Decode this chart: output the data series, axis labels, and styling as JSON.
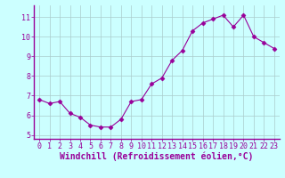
{
  "x": [
    0,
    1,
    2,
    3,
    4,
    5,
    6,
    7,
    8,
    9,
    10,
    11,
    12,
    13,
    14,
    15,
    16,
    17,
    18,
    19,
    20,
    21,
    22,
    23
  ],
  "y": [
    6.8,
    6.6,
    6.7,
    6.1,
    5.9,
    5.5,
    5.4,
    5.4,
    5.8,
    6.7,
    6.8,
    7.6,
    7.9,
    8.8,
    9.3,
    10.3,
    10.7,
    10.9,
    11.1,
    10.5,
    11.1,
    10.0,
    9.7,
    9.4
  ],
  "line_color": "#990099",
  "marker": "D",
  "marker_size": 2.5,
  "bg_color": "#ccffff",
  "grid_color": "#aacccc",
  "xlabel": "Windchill (Refroidissement éolien,°C)",
  "xlabel_color": "#990099",
  "xlabel_fontsize": 7,
  "tick_color": "#990099",
  "tick_fontsize": 6,
  "ylim": [
    4.8,
    11.6
  ],
  "yticks": [
    5,
    6,
    7,
    8,
    9,
    10,
    11
  ],
  "xlim": [
    -0.5,
    23.5
  ],
  "xticks": [
    0,
    1,
    2,
    3,
    4,
    5,
    6,
    7,
    8,
    9,
    10,
    11,
    12,
    13,
    14,
    15,
    16,
    17,
    18,
    19,
    20,
    21,
    22,
    23
  ],
  "spine_color": "#990099"
}
